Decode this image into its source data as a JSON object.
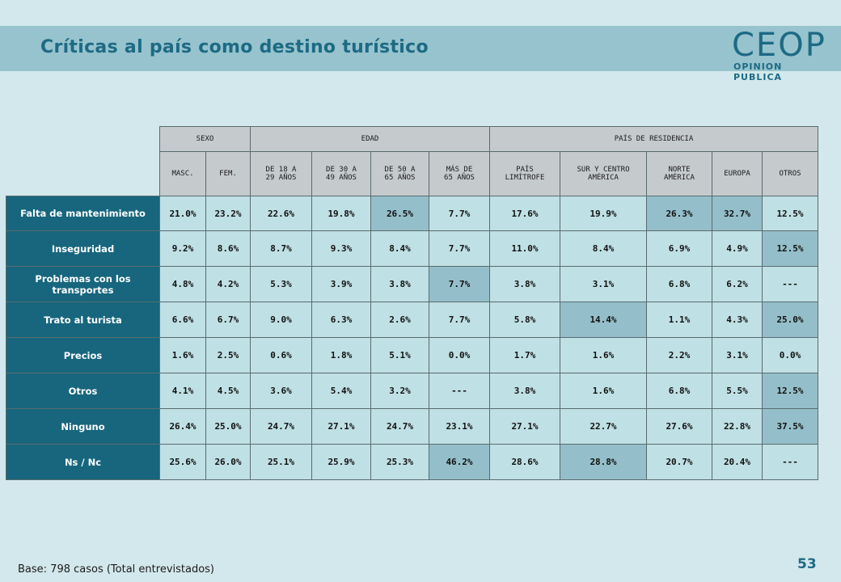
{
  "header": {
    "title": "Críticas al país como destino turístico"
  },
  "logo": {
    "brand": "CEOP",
    "subtitle": "OPINION PUBLICA"
  },
  "table": {
    "group_headers": [
      "SEXO",
      "EDAD",
      "PAÍS DE RESIDENCIA"
    ],
    "sub_headers": [
      [
        "MASC."
      ],
      [
        "FEM."
      ],
      [
        "DE 18 A",
        "29 AÑOS"
      ],
      [
        "DE 30 A",
        "49 AÑOS"
      ],
      [
        "DE 50 A",
        "65 AÑOS"
      ],
      [
        "MÁS DE",
        "65 AÑOS"
      ],
      [
        "PAÍS",
        "LIMÍTROFE"
      ],
      [
        "SUR Y CENTRO",
        "AMÉRICA"
      ],
      [
        "NORTE",
        "AMÉRICA"
      ],
      [
        "EUROPA"
      ],
      [
        "OTROS"
      ]
    ],
    "rows": [
      {
        "label": "Falta de mantenimiento",
        "values": [
          "21.0%",
          "23.2%",
          "22.6%",
          "19.8%",
          "26.5%",
          "7.7%",
          "17.6%",
          "19.9%",
          "26.3%",
          "32.7%",
          "12.5%"
        ],
        "highlight": [
          4,
          8,
          9
        ]
      },
      {
        "label": "Inseguridad",
        "values": [
          "9.2%",
          "8.6%",
          "8.7%",
          "9.3%",
          "8.4%",
          "7.7%",
          "11.0%",
          "8.4%",
          "6.9%",
          "4.9%",
          "12.5%"
        ],
        "highlight": [
          10
        ]
      },
      {
        "label": "Problemas con los transportes",
        "values": [
          "4.8%",
          "4.2%",
          "5.3%",
          "3.9%",
          "3.8%",
          "7.7%",
          "3.8%",
          "3.1%",
          "6.8%",
          "6.2%",
          "---"
        ],
        "highlight": [
          5
        ]
      },
      {
        "label": "Trato al turista",
        "values": [
          "6.6%",
          "6.7%",
          "9.0%",
          "6.3%",
          "2.6%",
          "7.7%",
          "5.8%",
          "14.4%",
          "1.1%",
          "4.3%",
          "25.0%"
        ],
        "highlight": [
          7,
          10
        ]
      },
      {
        "label": "Precios",
        "values": [
          "1.6%",
          "2.5%",
          "0.6%",
          "1.8%",
          "5.1%",
          "0.0%",
          "1.7%",
          "1.6%",
          "2.2%",
          "3.1%",
          "0.0%"
        ],
        "highlight": []
      },
      {
        "label": "Otros",
        "values": [
          "4.1%",
          "4.5%",
          "3.6%",
          "5.4%",
          "3.2%",
          "---",
          "3.8%",
          "1.6%",
          "6.8%",
          "5.5%",
          "12.5%"
        ],
        "highlight": [
          10
        ]
      },
      {
        "label": "Ninguno",
        "values": [
          "26.4%",
          "25.0%",
          "24.7%",
          "27.1%",
          "24.7%",
          "23.1%",
          "27.1%",
          "22.7%",
          "27.6%",
          "22.8%",
          "37.5%"
        ],
        "highlight": [
          10
        ]
      },
      {
        "label": "Ns / Nc",
        "values": [
          "25.6%",
          "26.0%",
          "25.1%",
          "25.9%",
          "25.3%",
          "46.2%",
          "28.6%",
          "28.8%",
          "20.7%",
          "20.4%",
          "---"
        ],
        "highlight": [
          5,
          7
        ]
      }
    ]
  },
  "footer": {
    "base": "Base: 798 casos (Total entrevistados)",
    "page_number": "53"
  },
  "colors": {
    "accent": "#1d6a84",
    "row_label_bg": "#17667d",
    "cell_bg": "#bfe0e4",
    "cell_highlight": "#94bfca",
    "header_bg": "#c5cacd"
  }
}
